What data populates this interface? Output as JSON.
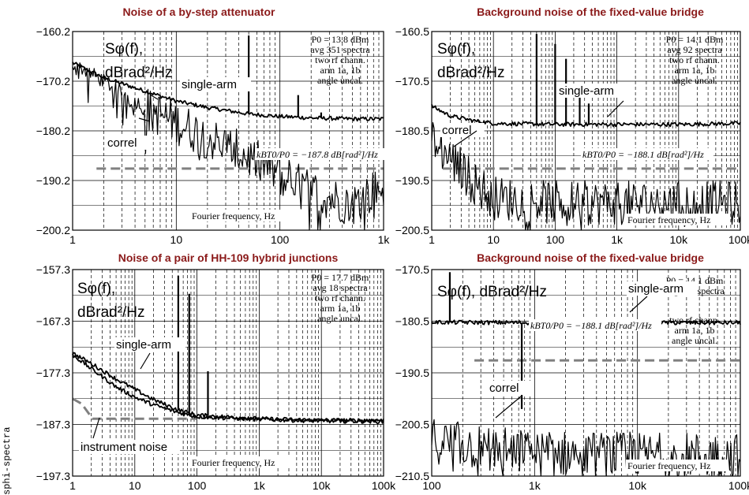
{
  "figure_label": "sphi-spectra",
  "colors": {
    "title": "#8b1a1a",
    "trace": "#000000",
    "floor": "#808080",
    "grid": "#000000"
  },
  "chart_data": [
    {
      "type": "line",
      "title": "Noise of a  by-step attenuator",
      "xscale": "log",
      "xlim": [
        1,
        1000
      ],
      "ylim": [
        -200.2,
        -160.2
      ],
      "xticks": [
        1,
        10,
        100,
        1000
      ],
      "xticklabels": [
        "1",
        "10",
        "100",
        "1k"
      ],
      "yticks": [
        -160.2,
        -170.2,
        -180.2,
        -190.2,
        -200.2
      ],
      "yticklabels": [
        "−160.2",
        "−170.2",
        "−180.2",
        "−190.2",
        "−200.2"
      ],
      "ylabel_lines": [
        "Sφ(f),",
        "dBrad²/Hz"
      ],
      "xlabel": "Fourier frequency, Hz",
      "info": [
        "P0 = 13.8 dBm",
        "avg 351 spectra",
        "two rf chann.",
        "arm 1a, 1b",
        "angle uncal."
      ],
      "floor_label": "kBT0/P0 = −187.8 dB[rad²]/Hz",
      "floor": {
        "y": -187.8,
        "x_from": 1.7,
        "x_to": 1000
      },
      "series": [
        {
          "name": "single-arm",
          "x": [
            1,
            2,
            5,
            10,
            20,
            50,
            100,
            200,
            500,
            1000
          ],
          "y": [
            -166.5,
            -169.5,
            -172.2,
            -174.2,
            -175.5,
            -176.8,
            -177.3,
            -177.6,
            -177.8,
            -177.8
          ]
        },
        {
          "name": "correl",
          "x": [
            1,
            2,
            5,
            10,
            20,
            50,
            100,
            200,
            500,
            1000
          ],
          "y": [
            -166.5,
            -170.2,
            -175.5,
            -178.5,
            -181.5,
            -185.5,
            -189,
            -192.5,
            -195,
            -191
          ]
        }
      ],
      "spurs": [
        {
          "x": 50,
          "y": -161
        },
        {
          "x": 150,
          "y": -173
        },
        {
          "x": 250,
          "y": -176.5
        }
      ]
    },
    {
      "type": "line",
      "title": "Background noise of the fixed-value bridge",
      "xscale": "log",
      "xlim": [
        1,
        100000
      ],
      "ylim": [
        -200.5,
        -160.5
      ],
      "xticks": [
        1,
        10,
        100,
        1000,
        10000,
        100000
      ],
      "xticklabels": [
        "1",
        "10",
        "100",
        "1k",
        "10k",
        "100k"
      ],
      "yticks": [
        -160.5,
        -170.5,
        -180.5,
        -190.5,
        -200.5
      ],
      "yticklabels": [
        "−160.5",
        "−170.5",
        "−180.5",
        "−190.5",
        "−200.5"
      ],
      "ylabel_lines": [
        "Sφ(f),",
        "dBrad²/Hz"
      ],
      "xlabel": "Fourier frequency, Hz",
      "info": [
        "P0 = 14.1 dBm",
        "avg 92 spectra",
        "two rf chann.",
        "arm 1a, 1b",
        "angle uncal."
      ],
      "floor_label": "kBT0/P0 = −188.1 dB[rad²]/Hz",
      "floor": {
        "y": -188.1,
        "x_from": 1.5,
        "x_to": 100000
      },
      "series": [
        {
          "name": "single-arm",
          "x": [
            1,
            2,
            5,
            10,
            100,
            1000,
            10000,
            100000
          ],
          "y": [
            -175.5,
            -177.5,
            -178.5,
            -179.0,
            -179.2,
            -179.2,
            -179.2,
            -179.0
          ]
        },
        {
          "name": "correl",
          "x": [
            1,
            2,
            5,
            10,
            100,
            1000,
            10000,
            100000
          ],
          "y": [
            -182,
            -186,
            -191,
            -194,
            -195,
            -195,
            -195,
            -195
          ]
        }
      ],
      "spurs": [
        {
          "x": 50,
          "y": -161
        },
        {
          "x": 100,
          "y": -163
        },
        {
          "x": 150,
          "y": -166
        },
        {
          "x": 250,
          "y": -172
        },
        {
          "x": 350,
          "y": -175
        }
      ]
    },
    {
      "type": "line",
      "title": "Noise of a pair of HH-109 hybrid junctions",
      "xscale": "log",
      "xlim": [
        1,
        100000
      ],
      "ylim": [
        -197.3,
        -157.3
      ],
      "xticks": [
        1,
        10,
        100,
        1000,
        10000,
        100000
      ],
      "xticklabels": [
        "1",
        "10",
        "100",
        "1k",
        "10k",
        "100k"
      ],
      "yticks": [
        -157.3,
        -167.3,
        -177.3,
        -187.3,
        -197.3
      ],
      "yticklabels": [
        "−157.3",
        "−167.3",
        "−177.3",
        "−187.3",
        "−197.3"
      ],
      "ylabel_lines": [
        "Sφ(f),",
        "dBrad²/Hz"
      ],
      "xlabel": "Fourier frequency, Hz",
      "info": [
        "P0 = 17.7 dBm",
        "avg 18 spectra",
        "two rf chann.",
        "arm 1a, 1b",
        "angle uncal."
      ],
      "instrument_label": "instrument noise",
      "instrument": {
        "x": [
          1,
          1.4,
          2.1,
          4,
          100
        ],
        "y": [
          -182.3,
          -183.3,
          -186.2,
          -186.2,
          -186.2
        ]
      },
      "series": [
        {
          "name": "single-arm",
          "x": [
            1,
            2,
            5,
            10,
            20,
            50,
            100,
            1000,
            10000,
            100000
          ],
          "y": [
            -173.5,
            -175.5,
            -178.5,
            -180.5,
            -182.5,
            -184.5,
            -185.5,
            -186.2,
            -186.5,
            -186.5
          ]
        },
        {
          "name": "",
          "x": [
            1,
            2,
            5,
            10,
            20,
            50,
            100,
            1000,
            10000,
            100000
          ],
          "y": [
            -173.8,
            -176.5,
            -180,
            -182,
            -183.5,
            -185,
            -185.8,
            -186.3,
            -186.6,
            -186.7
          ]
        }
      ],
      "spurs": [
        {
          "x": 50,
          "y": -158.5
        },
        {
          "x": 75,
          "y": -162
        },
        {
          "x": 150,
          "y": -177
        }
      ]
    },
    {
      "type": "line",
      "title": "Background noise of the fixed-value bridge",
      "xscale": "log",
      "xlim": [
        100,
        100000
      ],
      "ylim": [
        -210.5,
        -170.5
      ],
      "xticks": [
        100,
        1000,
        10000,
        100000
      ],
      "xticklabels": [
        "100",
        "1k",
        "10k",
        "100k"
      ],
      "yticks": [
        -170.5,
        -180.5,
        -190.5,
        -200.5,
        -210.5
      ],
      "yticklabels": [
        "−170.5",
        "−180.5",
        "−190.5",
        "−200.5",
        "−210.5"
      ],
      "ylabel_lines": [
        "Sφ(f), dBrad²/Hz"
      ],
      "xlabel": "Fourier frequency, Hz",
      "info": [
        "P0 = 14.1 dBm",
        "avg 32k spectra"
      ],
      "info2": [
        "two rf chann.",
        "arm 1a, 1b",
        "angle uncal."
      ],
      "floor_label": "kBT0/P0 = −188.1 dB[rad²]/Hz",
      "floor": {
        "y": -188.1,
        "x_from": 260,
        "x_to": 100000
      },
      "series": [
        {
          "name": "single-arm",
          "x": [
            100,
            1000,
            10000,
            100000
          ],
          "y": [
            -180.7,
            -180.8,
            -180.8,
            -180.8
          ]
        },
        {
          "name": "correl",
          "x": [
            100,
            300,
            1000,
            10000,
            100000
          ],
          "y": [
            -203.5,
            -205,
            -206,
            -206.5,
            -206.5
          ]
        }
      ],
      "spurs": [
        {
          "x": 150,
          "y": -171
        },
        {
          "x": 750,
          "y": -197.5
        }
      ]
    }
  ]
}
